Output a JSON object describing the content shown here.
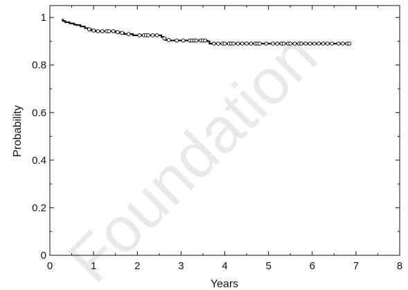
{
  "chart_data": {
    "type": "line",
    "xlabel": "Years",
    "ylabel": "Probability",
    "xlim": [
      0,
      8
    ],
    "ylim": [
      0,
      1.05
    ],
    "xticks": [
      "0",
      "1",
      "2",
      "3",
      "4",
      "5",
      "6",
      "7",
      "8"
    ],
    "yticks": [
      "0",
      "0.2",
      "0.4",
      "0.6",
      "0.8",
      "1"
    ],
    "grid": false,
    "series": [
      {
        "step_x": [
          0.27,
          0.3,
          0.35,
          0.45,
          0.55,
          0.6,
          0.7,
          0.8,
          0.87,
          0.95,
          1.05,
          1.5,
          1.6,
          1.7,
          1.9,
          2.55,
          2.6,
          2.65,
          2.75,
          3.6,
          3.65,
          6.85
        ],
        "step_y": [
          0.99,
          0.985,
          0.98,
          0.975,
          0.97,
          0.968,
          0.962,
          0.955,
          0.95,
          0.945,
          0.942,
          0.938,
          0.935,
          0.93,
          0.925,
          0.918,
          0.912,
          0.905,
          0.903,
          0.9,
          0.89,
          0.89
        ],
        "censor_x": [
          0.9,
          1.0,
          1.1,
          1.2,
          1.3,
          1.35,
          1.45,
          1.55,
          1.65,
          1.8,
          2.05,
          2.15,
          2.2,
          2.25,
          2.35,
          2.45,
          2.62,
          2.72,
          2.9,
          3.05,
          3.2,
          3.25,
          3.3,
          3.35,
          3.45,
          3.5,
          3.55,
          3.75,
          3.85,
          3.95,
          4.0,
          4.1,
          4.15,
          4.2,
          4.3,
          4.4,
          4.5,
          4.6,
          4.7,
          4.75,
          4.8,
          4.95,
          5.1,
          5.2,
          5.3,
          5.35,
          5.45,
          5.5,
          5.6,
          5.7,
          5.75,
          5.85,
          5.95,
          6.05,
          6.15,
          6.25,
          6.35,
          6.45,
          6.6,
          6.7,
          6.8,
          6.85
        ]
      }
    ]
  },
  "watermark": "Foundation"
}
